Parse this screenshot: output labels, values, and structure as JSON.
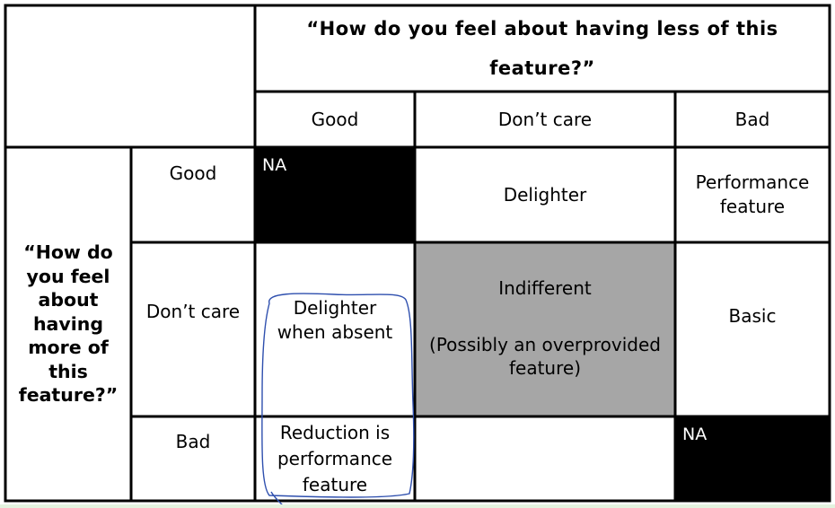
{
  "table": {
    "column_question": "“How do you feel about having less of this feature?”",
    "row_question": "“How do you feel about having more of this feature?”",
    "column_headers": [
      "Good",
      "Don’t care",
      "Bad"
    ],
    "row_headers": [
      "Good",
      "Don’t care",
      "Bad"
    ],
    "cells": {
      "good_good": "NA",
      "good_dontcare": "Delighter",
      "good_bad": "Performance feature",
      "dontcare_good": "Delighter when absent",
      "dontcare_dontcare_title": "Indifferent",
      "dontcare_dontcare_note": "(Possibly an overprovided feature)",
      "dontcare_bad": "Basic",
      "bad_good": "Reduction is performance feature",
      "bad_dontcare": "",
      "bad_bad": "NA"
    }
  },
  "colors": {
    "na_fill": "#000000",
    "indifferent_fill": "#a6a6a6",
    "annotation_ink": "#2e4fae"
  }
}
